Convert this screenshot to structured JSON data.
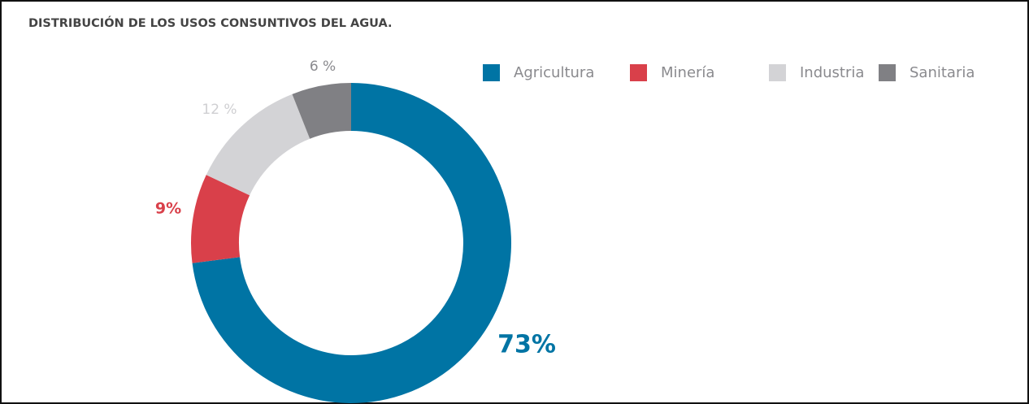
{
  "chart_data": {
    "type": "pie",
    "title": "DISTRIBUCIÓN DE LOS USOS CONSUNTIVOS DEL AGUA.",
    "categories": [
      "Agricultura",
      "Minería",
      "Industria",
      "Sanitaria"
    ],
    "values": [
      73,
      9,
      12,
      6
    ],
    "value_labels": [
      "73%",
      "9%",
      "12 %",
      "6 %"
    ],
    "colors": [
      "#0074a4",
      "#d9404a",
      "#d3d3d6",
      "#808084"
    ],
    "donut": true,
    "legend": "top-right"
  }
}
